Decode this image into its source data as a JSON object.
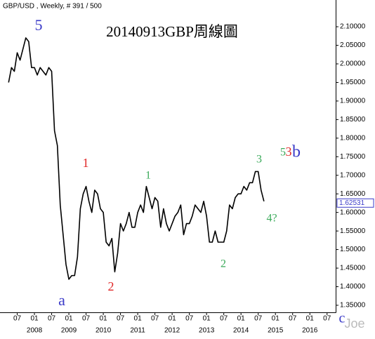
{
  "chart_data": {
    "type": "line",
    "header": "GBP/USD , Weekly, # 391 / 500",
    "title": "20140913GBP周線圖",
    "watermark": "Joe",
    "x": [
      "2007-04",
      "2007-05",
      "2007-06",
      "2007-07",
      "2007-08",
      "2007-09",
      "2007-10",
      "2007-11",
      "2007-12",
      "2008-01",
      "2008-02",
      "2008-03",
      "2008-04",
      "2008-05",
      "2008-06",
      "2008-07",
      "2008-08",
      "2008-09",
      "2008-10",
      "2008-11",
      "2008-12",
      "2009-01",
      "2009-02",
      "2009-03",
      "2009-04",
      "2009-05",
      "2009-06",
      "2009-07",
      "2009-08",
      "2009-09",
      "2009-10",
      "2009-11",
      "2009-12",
      "2010-01",
      "2010-02",
      "2010-03",
      "2010-04",
      "2010-05",
      "2010-06",
      "2010-07",
      "2010-08",
      "2010-09",
      "2010-10",
      "2010-11",
      "2010-12",
      "2011-01",
      "2011-02",
      "2011-03",
      "2011-04",
      "2011-05",
      "2011-06",
      "2011-07",
      "2011-08",
      "2011-09",
      "2011-10",
      "2011-11",
      "2011-12",
      "2012-01",
      "2012-02",
      "2012-03",
      "2012-04",
      "2012-05",
      "2012-06",
      "2012-07",
      "2012-08",
      "2012-09",
      "2012-10",
      "2012-11",
      "2012-12",
      "2013-01",
      "2013-02",
      "2013-03",
      "2013-04",
      "2013-05",
      "2013-06",
      "2013-07",
      "2013-08",
      "2013-09",
      "2013-10",
      "2013-11",
      "2013-12",
      "2014-01",
      "2014-02",
      "2014-03",
      "2014-04",
      "2014-05",
      "2014-06",
      "2014-07",
      "2014-08",
      "2014-09"
    ],
    "series": [
      {
        "name": "GBP/USD",
        "color": "#000000",
        "values": [
          1.95,
          1.99,
          1.98,
          2.03,
          2.01,
          2.04,
          2.07,
          2.06,
          1.99,
          1.99,
          1.97,
          1.99,
          1.98,
          1.97,
          1.99,
          1.98,
          1.82,
          1.78,
          1.62,
          1.54,
          1.46,
          1.42,
          1.43,
          1.43,
          1.48,
          1.61,
          1.65,
          1.67,
          1.63,
          1.6,
          1.66,
          1.65,
          1.61,
          1.6,
          1.52,
          1.51,
          1.53,
          1.44,
          1.49,
          1.57,
          1.55,
          1.57,
          1.6,
          1.56,
          1.56,
          1.6,
          1.62,
          1.6,
          1.67,
          1.64,
          1.61,
          1.64,
          1.63,
          1.56,
          1.61,
          1.57,
          1.55,
          1.57,
          1.59,
          1.6,
          1.62,
          1.54,
          1.57,
          1.57,
          1.59,
          1.62,
          1.61,
          1.6,
          1.63,
          1.59,
          1.52,
          1.52,
          1.55,
          1.52,
          1.52,
          1.52,
          1.55,
          1.62,
          1.61,
          1.64,
          1.65,
          1.65,
          1.67,
          1.66,
          1.68,
          1.68,
          1.71,
          1.71,
          1.66,
          1.63
        ]
      }
    ],
    "last_value": 1.62531,
    "xlim": [
      "2007-01",
      "2016-10"
    ],
    "xticks": [
      {
        "value": "2007-07",
        "label": "07"
      },
      {
        "value": "2008-01",
        "label": "01"
      },
      {
        "value": "2008-07",
        "label": "07"
      },
      {
        "value": "2009-01",
        "label": "01"
      },
      {
        "value": "2009-07",
        "label": "07"
      },
      {
        "value": "2010-01",
        "label": "01"
      },
      {
        "value": "2010-07",
        "label": "07"
      },
      {
        "value": "2011-01",
        "label": "01"
      },
      {
        "value": "2011-07",
        "label": "07"
      },
      {
        "value": "2012-01",
        "label": "01"
      },
      {
        "value": "2012-07",
        "label": "07"
      },
      {
        "value": "2013-01",
        "label": "01"
      },
      {
        "value": "2013-07",
        "label": "07"
      },
      {
        "value": "2014-01",
        "label": "01"
      },
      {
        "value": "2014-07",
        "label": "07"
      },
      {
        "value": "2015-01",
        "label": "01"
      },
      {
        "value": "2015-07",
        "label": "07"
      },
      {
        "value": "2016-01",
        "label": "01"
      },
      {
        "value": "2016-07",
        "label": "07"
      }
    ],
    "year_labels": [
      {
        "value": "2008-01",
        "label": "2008"
      },
      {
        "value": "2009-01",
        "label": "2009"
      },
      {
        "value": "2010-01",
        "label": "2010"
      },
      {
        "value": "2011-01",
        "label": "2011"
      },
      {
        "value": "2012-01",
        "label": "2012"
      },
      {
        "value": "2013-01",
        "label": "2013"
      },
      {
        "value": "2014-01",
        "label": "2014"
      },
      {
        "value": "2015-01",
        "label": "2015"
      },
      {
        "value": "2016-01",
        "label": "2016"
      }
    ],
    "ylim": [
      1.331,
      2.172
    ],
    "yticks": [
      {
        "value": 1.35,
        "label": "1.35000"
      },
      {
        "value": 1.4,
        "label": "1.40000"
      },
      {
        "value": 1.45,
        "label": "1.45000"
      },
      {
        "value": 1.5,
        "label": "1.50000"
      },
      {
        "value": 1.55,
        "label": "1.55000"
      },
      {
        "value": 1.6,
        "label": "1.60000"
      },
      {
        "value": 1.65,
        "label": "1.65000"
      },
      {
        "value": 1.7,
        "label": "1.70000"
      },
      {
        "value": 1.75,
        "label": "1.75000"
      },
      {
        "value": 1.8,
        "label": "1.80000"
      },
      {
        "value": 1.85,
        "label": "1.85000"
      },
      {
        "value": 1.9,
        "label": "1.90000"
      },
      {
        "value": 1.95,
        "label": "1.95000"
      },
      {
        "value": 2.0,
        "label": "2.00000"
      },
      {
        "value": 2.05,
        "label": "2.05000"
      },
      {
        "value": 2.1,
        "label": "2.10000"
      }
    ],
    "annotations": [
      {
        "text": "5",
        "color": "#3a3ac8"
      },
      {
        "text": "1",
        "color": "#e02828"
      },
      {
        "text": "2",
        "color": "#e02828"
      },
      {
        "text": "a",
        "color": "#3a3ac8"
      },
      {
        "text": "1",
        "color": "#3aaa5a"
      },
      {
        "text": "2",
        "color": "#3aaa5a"
      },
      {
        "text": "3",
        "color": "#3aaa5a"
      },
      {
        "text": "4?",
        "color": "#3aaa5a"
      },
      {
        "text": "5",
        "color": "#3aaa5a"
      },
      {
        "text": "3",
        "color": "#e02828"
      },
      {
        "text": "b",
        "color": "#3a3ac8"
      },
      {
        "text": "c",
        "color": "#3a3ac8"
      }
    ]
  }
}
